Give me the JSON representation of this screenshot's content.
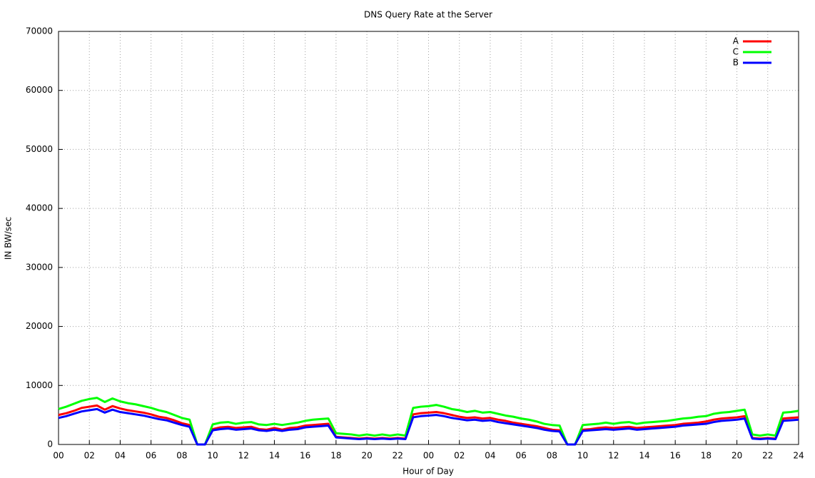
{
  "chart_data": {
    "type": "line",
    "title": "DNS Query Rate at the Server",
    "x_label": "Hour of Day",
    "y_label": "IN BW/sec",
    "x": [
      0,
      0.5,
      1,
      1.5,
      2,
      2.5,
      3,
      3.5,
      4,
      4.5,
      5,
      5.5,
      6,
      6.5,
      7,
      7.5,
      8,
      8.5,
      9,
      9.5,
      10,
      10.5,
      11,
      11.5,
      12,
      12.5,
      13,
      13.5,
      14,
      14.5,
      15,
      15.5,
      16,
      16.5,
      17,
      17.5,
      18,
      18.5,
      19,
      19.5,
      20,
      20.5,
      21,
      21.5,
      22,
      22.5,
      23,
      23.5,
      24,
      24.5,
      25,
      25.5,
      26,
      26.5,
      27,
      27.5,
      28,
      28.5,
      29,
      29.5,
      30,
      30.5,
      31,
      31.5,
      32,
      32.5,
      33,
      33.5,
      34,
      34.5,
      35,
      35.5,
      36,
      36.5,
      37,
      37.5,
      38,
      38.5,
      39,
      39.5,
      40,
      40.5,
      41,
      41.5,
      42,
      42.5,
      43,
      43.5,
      44,
      44.5,
      45,
      45.5,
      46,
      46.5,
      47,
      47.5,
      48
    ],
    "series": [
      {
        "name": "A",
        "color": "#ff0000",
        "values": [
          5000,
          5300,
          5700,
          6200,
          6400,
          6600,
          5900,
          6500,
          6100,
          5800,
          5600,
          5400,
          5100,
          4700,
          4500,
          4100,
          3600,
          3300,
          0,
          0,
          2600,
          2900,
          3000,
          2800,
          2900,
          3000,
          2600,
          2500,
          2800,
          2500,
          2800,
          2900,
          3200,
          3300,
          3400,
          3500,
          1300,
          1200,
          1100,
          1000,
          1100,
          1000,
          1100,
          1000,
          1100,
          1000,
          5100,
          5300,
          5400,
          5500,
          5300,
          5000,
          4700,
          4500,
          4600,
          4400,
          4500,
          4200,
          4000,
          3700,
          3500,
          3300,
          3100,
          2800,
          2500,
          2400,
          0,
          0,
          2500,
          2600,
          2800,
          2900,
          2800,
          2900,
          3000,
          2800,
          2900,
          3000,
          3100,
          3200,
          3300,
          3500,
          3600,
          3700,
          3900,
          4200,
          4400,
          4500,
          4600,
          4800,
          1100,
          1000,
          1100,
          1000,
          4400,
          4500,
          4600
        ]
      },
      {
        "name": "C",
        "color": "#00ff00",
        "values": [
          6000,
          6400,
          6900,
          7400,
          7700,
          7900,
          7200,
          7800,
          7300,
          7000,
          6800,
          6500,
          6200,
          5800,
          5500,
          5000,
          4500,
          4200,
          0,
          0,
          3400,
          3700,
          3800,
          3500,
          3700,
          3800,
          3400,
          3300,
          3500,
          3300,
          3500,
          3700,
          4000,
          4200,
          4300,
          4400,
          1900,
          1800,
          1700,
          1500,
          1700,
          1500,
          1700,
          1500,
          1700,
          1500,
          6200,
          6400,
          6500,
          6700,
          6400,
          6000,
          5800,
          5500,
          5700,
          5400,
          5500,
          5200,
          4900,
          4700,
          4400,
          4200,
          3900,
          3500,
          3300,
          3200,
          0,
          0,
          3300,
          3400,
          3500,
          3700,
          3500,
          3700,
          3800,
          3500,
          3700,
          3800,
          3900,
          4000,
          4200,
          4400,
          4500,
          4700,
          4800,
          5200,
          5400,
          5500,
          5700,
          5900,
          1700,
          1500,
          1700,
          1500,
          5400,
          5500,
          5700
        ]
      },
      {
        "name": "B",
        "color": "#0000ff",
        "values": [
          4500,
          4800,
          5200,
          5600,
          5800,
          6000,
          5400,
          5900,
          5500,
          5300,
          5100,
          4900,
          4600,
          4300,
          4100,
          3700,
          3300,
          3000,
          0,
          0,
          2400,
          2600,
          2700,
          2500,
          2600,
          2700,
          2400,
          2300,
          2500,
          2300,
          2500,
          2600,
          2900,
          3000,
          3100,
          3200,
          1200,
          1100,
          1000,
          900,
          1000,
          900,
          1000,
          900,
          1000,
          900,
          4600,
          4800,
          4900,
          5000,
          4800,
          4500,
          4300,
          4100,
          4200,
          4000,
          4100,
          3800,
          3600,
          3400,
          3200,
          3000,
          2800,
          2500,
          2300,
          2200,
          0,
          0,
          2300,
          2400,
          2500,
          2600,
          2500,
          2600,
          2700,
          2500,
          2600,
          2700,
          2800,
          2900,
          3000,
          3200,
          3300,
          3400,
          3500,
          3800,
          4000,
          4100,
          4200,
          4400,
          1000,
          900,
          1000,
          900,
          4000,
          4100,
          4200
        ]
      }
    ],
    "xlim": [
      0,
      48
    ],
    "xticks": [
      {
        "value": 0,
        "label": "00"
      },
      {
        "value": 2,
        "label": "02"
      },
      {
        "value": 4,
        "label": "04"
      },
      {
        "value": 6,
        "label": "06"
      },
      {
        "value": 8,
        "label": "08"
      },
      10,
      12,
      14,
      16,
      18,
      20,
      22,
      {
        "value": 24,
        "label": "00"
      },
      {
        "value": 26,
        "label": "02"
      },
      {
        "value": 28,
        "label": "04"
      },
      {
        "value": 30,
        "label": "06"
      },
      {
        "value": 32,
        "label": "08"
      },
      {
        "value": 34,
        "label": "10"
      },
      {
        "value": 36,
        "label": "12"
      },
      {
        "value": 38,
        "label": "14"
      },
      {
        "value": 40,
        "label": "16"
      },
      {
        "value": 42,
        "label": "18"
      },
      {
        "value": 44,
        "label": "20"
      },
      {
        "value": 46,
        "label": "22"
      },
      {
        "value": 48,
        "label": "24"
      }
    ],
    "ylim": [
      0,
      70000
    ],
    "yticks": [
      0,
      10000,
      20000,
      30000,
      40000,
      50000,
      60000,
      70000
    ],
    "grid": true,
    "legend": "top-right"
  }
}
